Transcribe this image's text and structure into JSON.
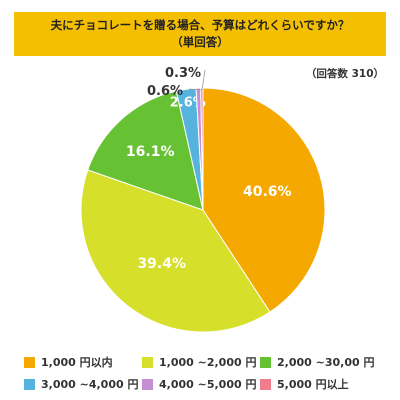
{
  "title": {
    "line1": "夫にチョコレートを贈る場合、予算はどれくらいですか？",
    "line2": "（単回答）"
  },
  "respondents": "（回答数 310）",
  "chart_data": {
    "type": "pie",
    "title": "夫にチョコレートを贈る場合、予算はどれくらいですか？（単回答）",
    "categories": [
      "1,000 円以内",
      "1,000 ~2,000 円",
      "2,000 ~30,00 円",
      "3,000 ~4,000 円",
      "4,000 ~5,000 円",
      "5,000 円以上"
    ],
    "values": [
      40.6,
      39.4,
      16.1,
      2.6,
      0.6,
      0.3
    ],
    "labels": [
      "40.6%",
      "39.4%",
      "16.1%",
      "2.6%",
      "0.6%",
      "0.3%"
    ],
    "colors": [
      "#f5a800",
      "#d6df2a",
      "#66c232",
      "#56b3dd",
      "#c58ed2",
      "#f07c8c"
    ],
    "start": "12 o'clock",
    "direction": "clockwise",
    "legend_position": "bottom"
  }
}
